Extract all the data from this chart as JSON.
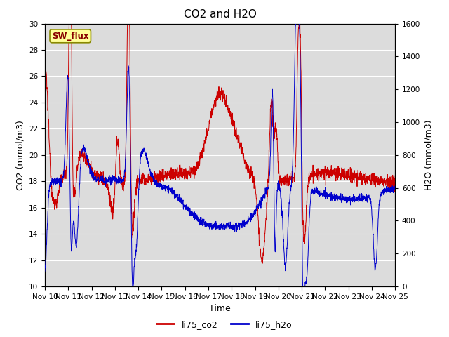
{
  "title": "CO2 and H2O",
  "xlabel": "Time",
  "ylabel_left": "CO2 (mmol/m3)",
  "ylabel_right": "H2O (mmol/m3)",
  "co2_ylim": [
    10,
    30
  ],
  "h2o_ylim": [
    0,
    1600
  ],
  "co2_color": "#cc0000",
  "h2o_color": "#0000cc",
  "bg_color": "#dcdcdc",
  "sw_flux_label": "SW_flux",
  "sw_flux_bg": "#ffff99",
  "sw_flux_border": "#999900",
  "legend_co2": "li75_co2",
  "legend_h2o": "li75_h2o",
  "x_tick_labels": [
    "Nov 10",
    "Nov 11",
    "Nov 12",
    "Nov 13",
    "Nov 14",
    "Nov 15",
    "Nov 16",
    "Nov 17",
    "Nov 18",
    "Nov 19",
    "Nov 20",
    "Nov 21",
    "Nov 22",
    "Nov 23",
    "Nov 24",
    "Nov 25"
  ],
  "title_fontsize": 11,
  "axis_label_fontsize": 9,
  "tick_fontsize": 7.5
}
